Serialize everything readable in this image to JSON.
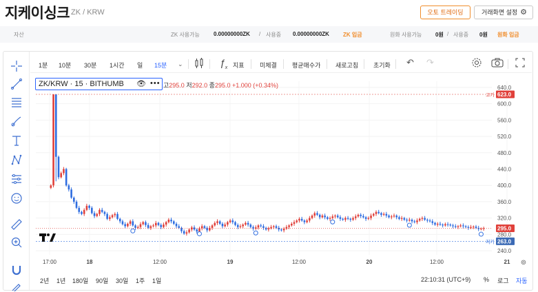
{
  "header": {
    "title": "지케이싱크",
    "subtitle": "ZK / KRW",
    "auto_trading": "오토 트레이딩",
    "screen_settings": "거래화면 설정"
  },
  "asset_bar": {
    "label": "자산",
    "zk_available_label": "ZK 사용가능",
    "zk_available_value": "0.00000000ZK",
    "slash": "/",
    "zk_in_use_label": "사용중",
    "zk_in_use_value": "0.00000000ZK",
    "zk_deposit": "ZK 입금",
    "krw_available_label": "원화 사용가능",
    "krw_available_value": "0원",
    "krw_in_use_label": "사용중",
    "krw_in_use_value": "0원",
    "krw_deposit": "원화 입금"
  },
  "toolbar": {
    "intervals": [
      "1분",
      "10분",
      "30분",
      "1시간",
      "일",
      "15분"
    ],
    "selected_interval": "15분",
    "indicator": "지표",
    "unsettled": "미체결",
    "avg_buy_price": "평균매수가",
    "refresh": "새로고침",
    "reset": "초기화"
  },
  "left_tools": [
    "crosshair-icon",
    "trendline-icon",
    "fib-icon",
    "brush-icon",
    "text-icon",
    "pattern-icon",
    "forecast-icon",
    "emoji-icon",
    "ruler-icon",
    "zoom-in-icon",
    "magnet-icon",
    "pencil-lock-icon"
  ],
  "legend": {
    "symbol": "ZK/KRW · 15 · BITHUMB",
    "ohlc_high_label": "고",
    "ohlc_high": "295.0",
    "ohlc_low_label": "저",
    "ohlc_low": "292.0",
    "ohlc_close_label": "종",
    "ohlc_close": "295.0",
    "ohlc_change": "+1.000 (+0.34%)"
  },
  "bottom": {
    "ranges": [
      "2년",
      "1년",
      "180일",
      "90일",
      "30일",
      "1주",
      "1일"
    ],
    "time": "22:10:31 (UTC+9)",
    "percent": "%",
    "log": "로그",
    "auto": "자동"
  },
  "colors": {
    "up": "#e0403a",
    "down": "#2f6de0",
    "high_marker": "#e0403a",
    "low_marker": "#2f6de0",
    "brand_orange": "#f08c2a"
  },
  "chart_data": {
    "type": "candlestick",
    "y_ticks": [
      640.0,
      600.0,
      560.0,
      520.0,
      480.0,
      440.0,
      400.0,
      360.0,
      320.0,
      280.0,
      240.0
    ],
    "y_tick_labels": [
      "640.0",
      "600.0",
      "560.0",
      "520.0",
      "480.0",
      "440.0",
      "400.0",
      "360.0",
      "320.0",
      "280.0",
      "240.0"
    ],
    "ylim": [
      230,
      655
    ],
    "x_ticks": [
      "17:00",
      "18",
      "12:00",
      "19",
      "12:00",
      "20",
      "12:00",
      "21"
    ],
    "high_label": "고가",
    "high_value": "623.0",
    "low_label": "저가",
    "low_value": "263.0",
    "last_value": "295.0",
    "series_close": [
      400,
      623,
      470,
      420,
      430,
      440,
      400,
      390,
      370,
      360,
      345,
      335,
      330,
      340,
      350,
      345,
      332,
      325,
      330,
      340,
      335,
      330,
      318,
      322,
      327,
      330,
      318,
      312,
      305,
      300,
      306,
      312,
      302,
      296,
      298,
      305,
      310,
      303,
      296,
      300,
      302,
      308,
      303,
      298,
      304,
      310,
      316,
      312,
      306,
      300,
      296,
      288,
      282,
      285,
      292,
      297,
      292,
      287,
      295,
      300,
      296,
      290,
      296,
      302,
      308,
      312,
      306,
      300,
      304,
      310,
      314,
      310,
      303,
      298,
      300,
      304,
      308,
      304,
      298,
      294,
      297,
      302,
      300,
      296,
      292,
      295,
      298,
      300,
      296,
      292,
      290,
      294,
      298,
      302,
      306,
      310,
      314,
      318,
      314,
      310,
      314,
      320,
      326,
      332,
      328,
      322,
      326,
      322,
      318,
      320,
      324,
      326,
      322,
      318,
      316,
      320,
      318,
      316,
      320,
      324,
      328,
      325,
      322,
      318,
      320,
      326,
      330,
      335,
      332,
      328,
      330,
      326,
      322,
      324,
      326,
      322,
      318,
      320,
      316,
      314,
      316,
      312,
      310,
      314,
      318,
      320,
      316,
      314,
      312,
      308,
      304,
      306,
      304,
      302,
      305,
      304,
      302,
      300,
      298,
      300,
      302,
      300,
      298,
      296,
      298,
      299,
      296,
      293,
      294,
      295
    ],
    "markers": [
      {
        "idx": 32,
        "kind": "up"
      },
      {
        "idx": 58,
        "kind": "up"
      },
      {
        "idx": 80,
        "kind": "up"
      },
      {
        "idx": 110,
        "kind": "up"
      },
      {
        "idx": 140,
        "kind": "up"
      },
      {
        "idx": 168,
        "kind": "up"
      }
    ]
  }
}
